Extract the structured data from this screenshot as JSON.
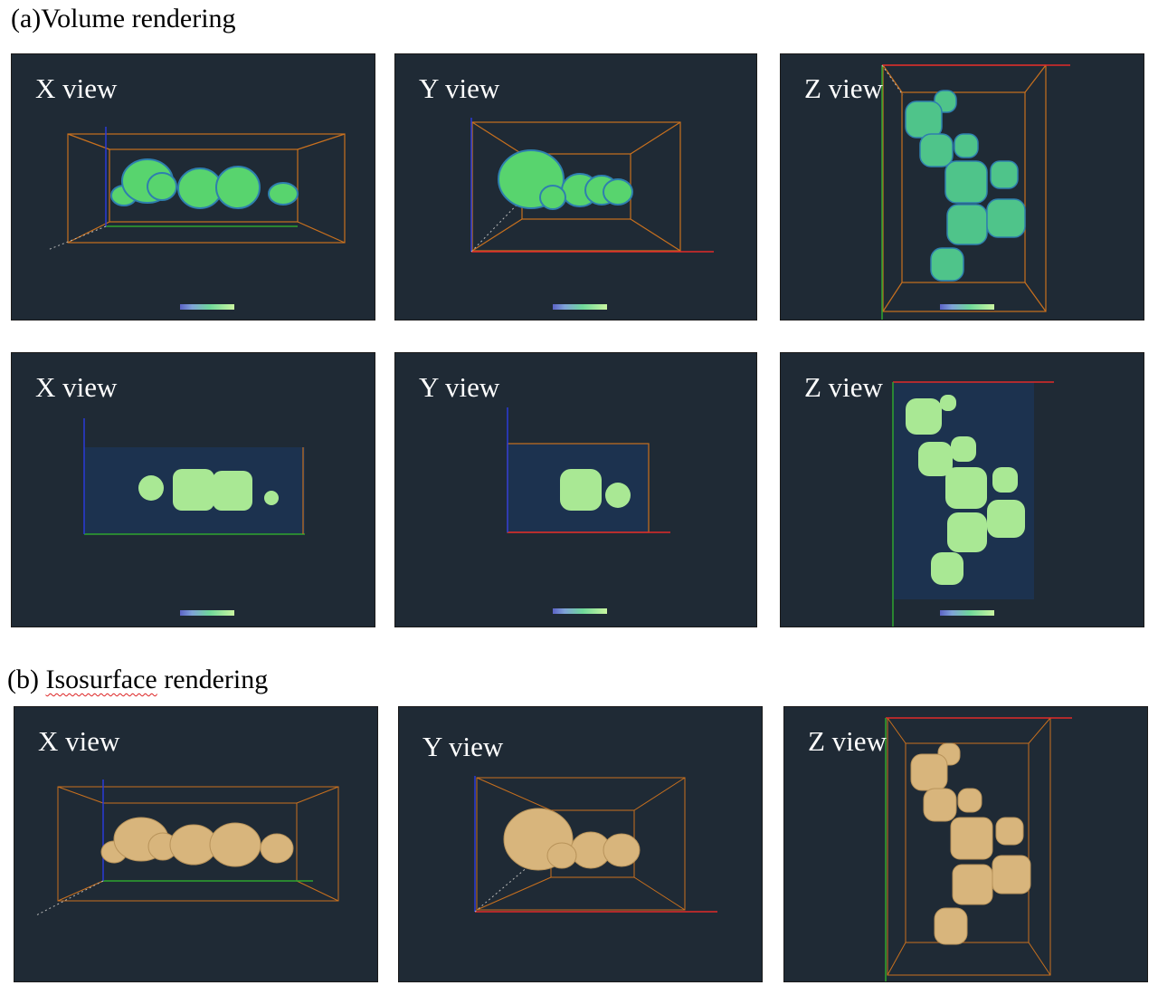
{
  "sections": [
    {
      "title_prefix": "(a)Volume rendering",
      "title_marked": "",
      "title_suffix": "",
      "rows": [
        [
          {
            "label": "X view",
            "mode": "volume"
          },
          {
            "label": "Y view",
            "mode": "volume"
          },
          {
            "label": "Z view",
            "mode": "volume"
          }
        ],
        [
          {
            "label": "X view",
            "mode": "slice"
          },
          {
            "label": "Y view",
            "mode": "slice"
          },
          {
            "label": "Z view",
            "mode": "slice"
          }
        ]
      ]
    },
    {
      "title_prefix": "(b) ",
      "title_marked": "Isosurface",
      "title_suffix": " rendering",
      "rows": [
        [
          {
            "label": "X view",
            "mode": "iso"
          },
          {
            "label": "Y view",
            "mode": "iso"
          },
          {
            "label": "Z view",
            "mode": "iso"
          }
        ]
      ]
    }
  ],
  "colors": {
    "panel_background": "#1f2a35",
    "bounding_box": "#c8701e",
    "axis_x": "#e02a2a",
    "axis_y": "#2fa52f",
    "axis_z": "#2a3ad8",
    "volume_fill": "#58d46e",
    "slice_fill": "#a9e894",
    "iso_fill": "#d8b57c"
  }
}
